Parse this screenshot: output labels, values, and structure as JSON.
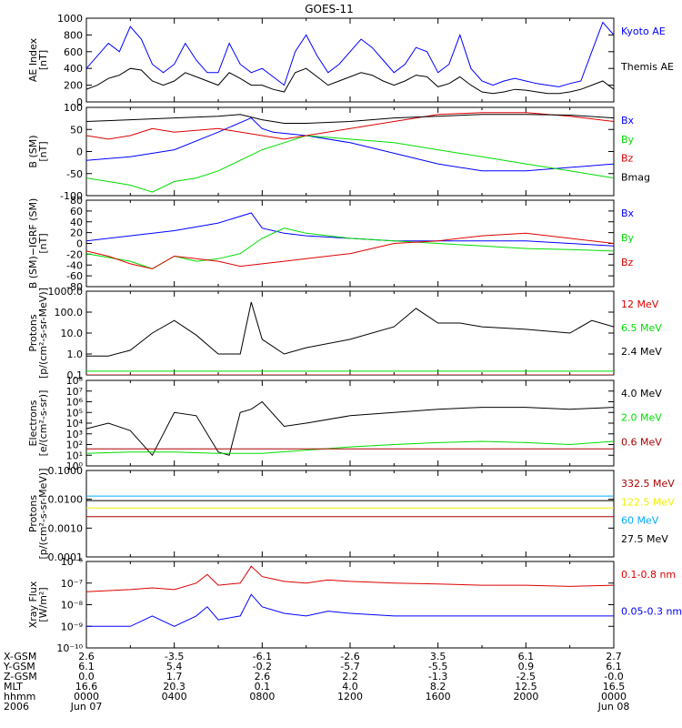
{
  "title": "GOES-11",
  "colors": {
    "blue": "#0000ff",
    "black": "#000000",
    "red": "#dd0000",
    "green": "#00dd00",
    "darkred": "#aa0000",
    "cyan": "#00aaff",
    "yellow": "#f0f000"
  },
  "x_axis": {
    "row_labels": [
      "X-GSM",
      "Y-GSM",
      "Z-GSM",
      "MLT",
      "hhmm",
      "2006"
    ],
    "columns": [
      [
        "2.6",
        "6.1",
        "0.0",
        "16.6",
        "0000",
        "Jun 07"
      ],
      [
        "-3.5",
        "5.4",
        "1.7",
        "20.3",
        "0400",
        ""
      ],
      [
        "-6.1",
        "-0.2",
        "2.6",
        "0.1",
        "0800",
        ""
      ],
      [
        "-2.6",
        "-5.7",
        "2.2",
        "4.0",
        "1200",
        ""
      ],
      [
        "3.5",
        "-5.5",
        "-1.3",
        "8.2",
        "1600",
        ""
      ],
      [
        "6.1",
        "0.9",
        "-2.5",
        "12.5",
        "2000",
        ""
      ],
      [
        "2.7",
        "6.1",
        "-0.0",
        "16.5",
        "0000",
        "Jun 08"
      ]
    ]
  },
  "chart_data": [
    {
      "type": "line",
      "ylabel": [
        "AE Index",
        "[nT]"
      ],
      "ylim": [
        0,
        1000
      ],
      "yticks": [
        "0",
        "200",
        "400",
        "600",
        "800",
        "1000"
      ],
      "series": [
        {
          "name": "Kyoto AE",
          "color": "#0000ff",
          "x": [
            0,
            0.5,
            1,
            1.5,
            2,
            2.5,
            3,
            3.5,
            4,
            4.5,
            5,
            5.5,
            6,
            6.5,
            7,
            7.5,
            8,
            8.5,
            9,
            9.5,
            10,
            10.5,
            11,
            11.5,
            12,
            12.5,
            13,
            13.5,
            14,
            14.5,
            15,
            15.5,
            16,
            16.5,
            17,
            17.5,
            18,
            18.5,
            19,
            19.5,
            20,
            20.5,
            21,
            21.5,
            22,
            22.5,
            23,
            23.5,
            24
          ],
          "y": [
            400,
            550,
            700,
            600,
            900,
            750,
            450,
            350,
            450,
            700,
            500,
            350,
            350,
            700,
            450,
            350,
            400,
            300,
            200,
            600,
            800,
            550,
            350,
            450,
            600,
            750,
            650,
            500,
            350,
            450,
            650,
            600,
            350,
            450,
            800,
            400,
            250,
            200,
            250,
            280,
            250,
            220,
            200,
            180,
            220,
            250,
            600,
            950,
            800
          ]
        },
        {
          "name": "Themis AE",
          "color": "#000000",
          "x": [
            0,
            0.5,
            1,
            1.5,
            2,
            2.5,
            3,
            3.5,
            4,
            4.5,
            5,
            5.5,
            6,
            6.5,
            7,
            7.5,
            8,
            8.5,
            9,
            9.5,
            10,
            10.5,
            11,
            11.5,
            12,
            12.5,
            13,
            13.5,
            14,
            14.5,
            15,
            15.5,
            16,
            16.5,
            17,
            17.5,
            18,
            18.5,
            19,
            19.5,
            20,
            20.5,
            21,
            21.5,
            22,
            22.5,
            23,
            23.5,
            24
          ],
          "y": [
            150,
            200,
            280,
            320,
            400,
            380,
            250,
            200,
            250,
            350,
            300,
            250,
            200,
            350,
            280,
            200,
            200,
            150,
            120,
            350,
            400,
            300,
            200,
            250,
            300,
            350,
            320,
            250,
            200,
            250,
            320,
            300,
            180,
            220,
            300,
            200,
            120,
            100,
            120,
            150,
            140,
            120,
            100,
            100,
            120,
            150,
            200,
            250,
            150
          ]
        }
      ]
    },
    {
      "type": "line",
      "ylabel": [
        "B (SM)",
        "[nT]"
      ],
      "ylim": [
        -110,
        140
      ],
      "yticks": [
        "-100",
        "-50",
        "0",
        "50",
        "100"
      ],
      "series": [
        {
          "name": "Bx",
          "color": "#0000ff",
          "x": [
            0,
            2,
            4,
            6,
            7.5,
            8,
            8.5,
            10,
            12,
            14,
            16,
            18,
            20,
            22,
            24
          ],
          "y": [
            -10,
            0,
            20,
            70,
            110,
            80,
            70,
            60,
            40,
            10,
            -20,
            -40,
            -40,
            -30,
            -20
          ]
        },
        {
          "name": "By",
          "color": "#00dd00",
          "x": [
            0,
            1,
            2,
            3,
            4,
            5,
            6,
            8,
            9,
            10,
            12,
            14,
            16,
            18,
            20,
            22,
            24
          ],
          "y": [
            -60,
            -70,
            -80,
            -100,
            -70,
            -60,
            -40,
            20,
            40,
            60,
            50,
            40,
            20,
            0,
            -20,
            -40,
            -60
          ]
        },
        {
          "name": "Bz",
          "color": "#dd0000",
          "x": [
            0,
            1,
            2,
            3,
            4,
            6,
            8,
            9,
            10,
            12,
            14,
            16,
            18,
            20,
            22,
            24
          ],
          "y": [
            60,
            50,
            60,
            80,
            70,
            80,
            60,
            50,
            60,
            80,
            100,
            120,
            125,
            125,
            115,
            100
          ]
        },
        {
          "name": "Bmag",
          "color": "#000000",
          "x": [
            0,
            2,
            4,
            6,
            7,
            8,
            9,
            10,
            12,
            14,
            16,
            18,
            20,
            22,
            24
          ],
          "y": [
            100,
            105,
            110,
            115,
            120,
            105,
            95,
            95,
            100,
            110,
            115,
            120,
            120,
            118,
            110
          ]
        }
      ]
    },
    {
      "type": "line",
      "ylabel": [
        "B (SM)−IGRF (SM)",
        "[nT]"
      ],
      "ylim": [
        -85,
        85
      ],
      "yticks": [
        "-80",
        "-60",
        "-40",
        "-20",
        "0",
        "20",
        "40",
        "60",
        "80"
      ],
      "series": [
        {
          "name": "Bx",
          "color": "#0000ff",
          "x": [
            0,
            2,
            4,
            6,
            7.5,
            8,
            8.5,
            9,
            10,
            12,
            14,
            16,
            18,
            20,
            22,
            24
          ],
          "y": [
            5,
            15,
            25,
            40,
            60,
            30,
            25,
            20,
            15,
            10,
            5,
            5,
            5,
            5,
            0,
            -5
          ]
        },
        {
          "name": "By",
          "color": "#00dd00",
          "x": [
            0,
            2,
            3,
            4,
            5,
            6,
            7,
            8,
            9,
            10,
            12,
            14,
            16,
            18,
            20,
            22,
            24
          ],
          "y": [
            -20,
            -35,
            -50,
            -25,
            -35,
            -30,
            -20,
            10,
            30,
            20,
            10,
            5,
            0,
            -5,
            -10,
            -12,
            -15
          ]
        },
        {
          "name": "Bz",
          "color": "#dd0000",
          "x": [
            0,
            1,
            2,
            3,
            4,
            5,
            6,
            7,
            8,
            9,
            10,
            12,
            14,
            16,
            18,
            20,
            22,
            24
          ],
          "y": [
            -15,
            -25,
            -40,
            -50,
            -25,
            -30,
            -35,
            -45,
            -40,
            -35,
            -30,
            -20,
            0,
            5,
            15,
            20,
            10,
            0
          ]
        }
      ]
    },
    {
      "type": "line",
      "yscale": "log",
      "ylabel": [
        "Protons",
        "[p/(cm²-s-sr-MeV)]"
      ],
      "ylim": [
        0.1,
        1000
      ],
      "yticks": [
        "0.1",
        "1.0",
        "10.0",
        "100.0",
        "1000.0"
      ],
      "series": [
        {
          "name": "12 MeV",
          "color": "#dd0000",
          "x": [
            0,
            24
          ],
          "y": [
            0.1,
            0.1
          ]
        },
        {
          "name": "6.5 MeV",
          "color": "#00dd00",
          "x": [
            0,
            24
          ],
          "y": [
            0.15,
            0.15
          ]
        },
        {
          "name": "2.4 MeV",
          "color": "#000000",
          "x": [
            0,
            1,
            2,
            3,
            4,
            5,
            6,
            7,
            7.5,
            8,
            9,
            10,
            12,
            14,
            15,
            16,
            17,
            18,
            20,
            22,
            23,
            24
          ],
          "y": [
            0.8,
            0.8,
            1.5,
            10,
            40,
            8,
            1,
            1,
            300,
            5,
            1,
            2,
            5,
            20,
            150,
            30,
            30,
            20,
            15,
            10,
            40,
            20
          ]
        }
      ]
    },
    {
      "type": "line",
      "yscale": "log",
      "ylabel": [
        "Electrons",
        "[e/(cm²-s-sr)]"
      ],
      "ylim": [
        1,
        100000000
      ],
      "yticks": [
        "10⁰",
        "10¹",
        "10²",
        "10³",
        "10⁴",
        "10⁵",
        "10⁶",
        "10⁷",
        "10⁸"
      ],
      "series": [
        {
          "name": "4.0 MeV",
          "color": "#000000",
          "x": [
            0,
            1,
            2,
            3,
            3.5,
            4,
            5,
            6,
            6.5,
            7,
            7.5,
            8,
            9,
            10,
            12,
            14,
            16,
            18,
            20,
            22,
            24
          ],
          "y": [
            3000,
            10000,
            2000,
            10,
            1000,
            100000,
            50000,
            20,
            10,
            100000,
            200000,
            1000000,
            5000,
            10000,
            50000,
            100000,
            200000,
            300000,
            300000,
            200000,
            300000
          ]
        },
        {
          "name": "2.0 MeV",
          "color": "#00dd00",
          "x": [
            0,
            2,
            4,
            6,
            8,
            10,
            12,
            14,
            16,
            18,
            20,
            22,
            24
          ],
          "y": [
            15,
            20,
            20,
            15,
            15,
            30,
            60,
            100,
            150,
            200,
            150,
            100,
            200
          ]
        },
        {
          "name": "0.6 MeV",
          "color": "#aa0000",
          "x": [
            0,
            24
          ],
          "y": [
            40,
            40
          ]
        }
      ]
    },
    {
      "type": "line",
      "yscale": "log",
      "ylabel": [
        "Protons",
        "[p/(cm²-s-sr-MeV)]"
      ],
      "ylim": [
        0.0001,
        0.1
      ],
      "yticks": [
        "0.0001",
        "0.0010",
        "0.0100",
        "0.1000"
      ],
      "series": [
        {
          "name": "332.5 MeV",
          "color": "#aa0000",
          "x": [
            0,
            24
          ],
          "y": [
            0.0025,
            0.0025
          ]
        },
        {
          "name": "122.5 MeV",
          "color": "#f0f000",
          "x": [
            0,
            24
          ],
          "y": [
            0.005,
            0.005
          ]
        },
        {
          "name": "60 MeV",
          "color": "#00aaff",
          "x": [
            0,
            24
          ],
          "y": [
            0.013,
            0.013
          ]
        },
        {
          "name": "27.5 MeV",
          "color": "#000000",
          "x": [
            0,
            24
          ],
          "y": [
            0.009,
            0.009
          ]
        }
      ]
    },
    {
      "type": "line",
      "yscale": "log",
      "ylabel": [
        "Xray Flux",
        "[W/m²]"
      ],
      "ylim": [
        1e-10,
        1e-06
      ],
      "yticks": [
        "10⁻¹⁰",
        "10⁻⁹",
        "10⁻⁸",
        "10⁻⁷",
        "10⁻⁶"
      ],
      "series": [
        {
          "name": "0.1-0.8 nm",
          "color": "#dd0000",
          "x": [
            0,
            2,
            3,
            4,
            5,
            5.5,
            6,
            7,
            7.5,
            8,
            9,
            10,
            11,
            12,
            14,
            16,
            18,
            20,
            22,
            24
          ],
          "y": [
            4e-08,
            5e-08,
            6e-08,
            5e-08,
            1e-07,
            2.5e-07,
            8e-08,
            1e-07,
            6e-07,
            2e-07,
            1.2e-07,
            1e-07,
            1.4e-07,
            1.2e-07,
            1e-07,
            9e-08,
            8e-08,
            8e-08,
            7e-08,
            8e-08
          ]
        },
        {
          "name": "0.05-0.3 nm",
          "color": "#0000ff",
          "x": [
            0,
            2,
            3,
            4,
            5,
            5.5,
            6,
            7,
            7.5,
            8,
            9,
            10,
            11,
            12,
            14,
            16,
            18,
            20,
            22,
            24
          ],
          "y": [
            1e-09,
            1e-09,
            3e-09,
            1e-09,
            3e-09,
            8e-09,
            2e-09,
            3e-09,
            3e-08,
            8e-09,
            4e-09,
            3e-09,
            5e-09,
            4e-09,
            3e-09,
            3e-09,
            3e-09,
            3e-09,
            3e-09,
            3e-09
          ]
        }
      ]
    }
  ]
}
